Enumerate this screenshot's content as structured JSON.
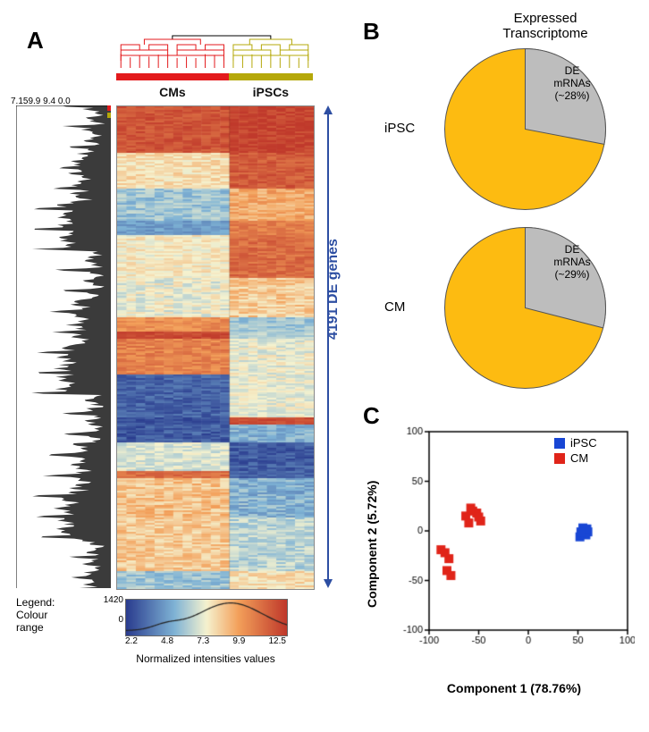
{
  "panels": {
    "A": "A",
    "B": "B",
    "C": "C"
  },
  "panelA": {
    "column_groups": [
      {
        "label": "CMs",
        "bar_color": "#e31a1c",
        "dendro_color": "#e31a1c",
        "n_samples": 12
      },
      {
        "label": "iPSCs",
        "bar_color": "#b5a80a",
        "dendro_color": "#b5a80a",
        "n_samples": 9
      }
    ],
    "de_genes_label": "4191 DE genes",
    "de_label_color": "#2d4ea2",
    "yaxis_ticks_text": "7.159.9 9.4 0.0",
    "heatmap": {
      "n_rows_visual": 270,
      "segments": [
        {
          "rows": 26,
          "cms": 0.92,
          "ipscs": 0.97,
          "noise": 0.06
        },
        {
          "rows": 20,
          "cms": 0.55,
          "ipscs": 0.9,
          "noise": 0.07
        },
        {
          "rows": 18,
          "cms": 0.35,
          "ipscs": 0.68,
          "noise": 0.08
        },
        {
          "rows": 8,
          "cms": 0.25,
          "ipscs": 0.8,
          "noise": 0.06
        },
        {
          "rows": 24,
          "cms": 0.52,
          "ipscs": 0.85,
          "noise": 0.07
        },
        {
          "rows": 22,
          "cms": 0.48,
          "ipscs": 0.6,
          "noise": 0.09
        },
        {
          "rows": 8,
          "cms": 0.75,
          "ipscs": 0.35,
          "noise": 0.07
        },
        {
          "rows": 4,
          "cms": 0.95,
          "ipscs": 0.4,
          "noise": 0.05
        },
        {
          "rows": 20,
          "cms": 0.78,
          "ipscs": 0.48,
          "noise": 0.08
        },
        {
          "rows": 24,
          "cms": 0.1,
          "ipscs": 0.48,
          "noise": 0.07
        },
        {
          "rows": 4,
          "cms": 0.05,
          "ipscs": 0.95,
          "noise": 0.05
        },
        {
          "rows": 10,
          "cms": 0.08,
          "ipscs": 0.3,
          "noise": 0.08
        },
        {
          "rows": 16,
          "cms": 0.45,
          "ipscs": 0.08,
          "noise": 0.07
        },
        {
          "rows": 4,
          "cms": 0.85,
          "ipscs": 0.1,
          "noise": 0.06
        },
        {
          "rows": 22,
          "cms": 0.62,
          "ipscs": 0.3,
          "noise": 0.09
        },
        {
          "rows": 30,
          "cms": 0.6,
          "ipscs": 0.4,
          "noise": 0.08
        },
        {
          "rows": 10,
          "cms": 0.35,
          "ipscs": 0.55,
          "noise": 0.08
        }
      ],
      "color_stops": [
        {
          "t": 0.0,
          "color": "#2b3d8f"
        },
        {
          "t": 0.3,
          "color": "#7fb3d5"
        },
        {
          "t": 0.5,
          "color": "#f5f2cf"
        },
        {
          "t": 0.7,
          "color": "#f3a05a"
        },
        {
          "t": 1.0,
          "color": "#c0392b"
        }
      ]
    },
    "legend": {
      "label_lines": [
        "Legend:",
        "Colour",
        "range"
      ],
      "y_top": "1420",
      "y_bot": "0",
      "ticks": [
        "2.2",
        "4.8",
        "7.3",
        "9.9",
        "12.5"
      ],
      "axis_label": "Normalized intensities values"
    },
    "row_dendro": {
      "fill": "#3b3b3b",
      "line": "#000000"
    }
  },
  "panelB": {
    "title": "Expressed\nTranscriptome",
    "pie_colors": {
      "main": "#fdbb11",
      "de": "#bdbdbd",
      "stroke": "#555555"
    },
    "pies": [
      {
        "id": "ipsc",
        "row_label": "iPSC",
        "de_pct": 28,
        "de_label": "DE\nmRNAs\n(~28%)"
      },
      {
        "id": "cm",
        "row_label": "CM",
        "de_pct": 29,
        "de_label": "DE\nmRNAs\n(~29%)"
      }
    ]
  },
  "panelC": {
    "type": "scatter",
    "xlabel": "Component 1 (78.76%)",
    "ylabel": "Component 2 (5.72%)",
    "xlim": [
      -100,
      100
    ],
    "ylim": [
      -100,
      100
    ],
    "xtick_step": 50,
    "ytick_step": 50,
    "axis_color": "#000000",
    "marker_size": 10,
    "series": [
      {
        "name": "iPSC",
        "marker": "square",
        "color": "#1846d4",
        "points": [
          [
            54,
            -2
          ],
          [
            56,
            0
          ],
          [
            58,
            -4
          ],
          [
            60,
            -1
          ],
          [
            55,
            3
          ],
          [
            52,
            -6
          ],
          [
            57,
            -3
          ],
          [
            59,
            2
          ],
          [
            53,
            -1
          ]
        ]
      },
      {
        "name": "CM",
        "marker": "square",
        "color": "#e02419",
        "points": [
          [
            -80,
            -28
          ],
          [
            -82,
            -40
          ],
          [
            -78,
            -45
          ],
          [
            -88,
            -19
          ],
          [
            -84,
            -22
          ],
          [
            -63,
            15
          ],
          [
            -56,
            20
          ],
          [
            -52,
            18
          ],
          [
            -48,
            10
          ],
          [
            -58,
            23
          ],
          [
            -60,
            8
          ],
          [
            -50,
            14
          ]
        ]
      }
    ]
  }
}
